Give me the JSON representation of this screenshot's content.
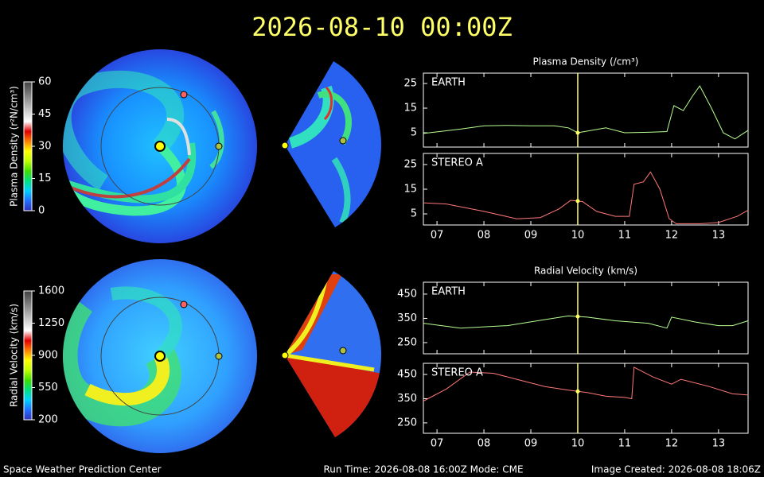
{
  "header": {
    "title": "2026-08-10  00:00Z"
  },
  "footer": {
    "left": "Space Weather Prediction Center",
    "center": "Run Time: 2026-08-08 16:00Z  Mode: CME",
    "right": "Image Created: 2026-08-08 18:06Z"
  },
  "colorbars": [
    {
      "label": "Plasma Density (r²N/cm³)",
      "lim": [
        0,
        60
      ],
      "ticks": [
        0,
        15,
        30,
        45,
        60
      ],
      "colors": [
        "#3030c0",
        "#2070ff",
        "#00d0ff",
        "#00e080",
        "#40e000",
        "#c0ff00",
        "#ffff00",
        "#ff8000",
        "#e00000",
        "#ffffff",
        "#d0d0d0",
        "#a0a0a0",
        "#707070",
        "#404040"
      ]
    },
    {
      "label": "Radial Velocity (km/s)",
      "lim": [
        200,
        1600
      ],
      "ticks": [
        200,
        550,
        900,
        1250,
        1600
      ],
      "colors": [
        "#3030c0",
        "#2070ff",
        "#00d0ff",
        "#00e080",
        "#40e000",
        "#c0ff00",
        "#ffff00",
        "#ff8000",
        "#e00000",
        "#ffffff",
        "#d0d0d0",
        "#a0a0a0",
        "#707070",
        "#404040"
      ]
    }
  ],
  "chart_data": [
    {
      "type": "line",
      "title": "Plasma Density (/cm³)",
      "xlim": [
        6.71,
        13.63
      ],
      "ylim": [
        -0.8,
        29.2
      ],
      "yticks": [
        5,
        15,
        25
      ],
      "xticks": [
        7,
        8,
        9,
        10,
        11,
        12,
        13
      ],
      "marker_x": 10.0,
      "x": [
        6.71,
        7.5,
        8.0,
        8.5,
        9.0,
        9.5,
        9.8,
        10.0,
        10.3,
        10.6,
        11.0,
        11.5,
        11.9,
        12.05,
        12.25,
        12.45,
        12.6,
        12.85,
        13.1,
        13.35,
        13.63
      ],
      "series": [
        {
          "name": "EARTH",
          "color": "#b8ff90",
          "values": [
            4.7,
            6.5,
            7.8,
            8.0,
            7.8,
            7.8,
            7.0,
            5.0,
            6.0,
            7.0,
            5.0,
            5.2,
            5.5,
            16,
            14,
            20,
            24,
            15,
            5,
            2.5,
            6
          ]
        }
      ]
    },
    {
      "type": "line",
      "xlim": [
        6.71,
        13.63
      ],
      "ylim": [
        0.5,
        29.5
      ],
      "yticks": [
        5,
        15,
        25
      ],
      "marker_x": 10.0,
      "xticks": [
        {
          "value": 7,
          "label": "07"
        },
        {
          "value": 8,
          "label": "08"
        },
        {
          "value": 9,
          "label": "09"
        },
        {
          "value": 10,
          "label": "10"
        },
        {
          "value": 11,
          "label": "11"
        },
        {
          "value": 12,
          "label": "12"
        },
        {
          "value": 13,
          "label": "13"
        }
      ],
      "x": [
        6.71,
        7.2,
        8.0,
        8.7,
        9.2,
        9.6,
        9.85,
        10.1,
        10.4,
        10.8,
        11.1,
        11.2,
        11.4,
        11.55,
        11.75,
        11.95,
        12.1,
        12.6,
        13.0,
        13.4,
        13.63
      ],
      "series": [
        {
          "name": "STEREO A",
          "color": "#ff7878",
          "values": [
            9.5,
            9,
            6,
            3,
            3.5,
            7,
            10.5,
            10,
            6,
            4,
            4,
            17,
            18,
            22,
            15,
            3,
            1,
            1,
            1.5,
            4,
            6.5
          ]
        }
      ]
    },
    {
      "type": "line",
      "title": "Radial Velocity (km/s)",
      "xlim": [
        6.71,
        13.63
      ],
      "ylim": [
        204,
        499
      ],
      "yticks": [
        250,
        350,
        450
      ],
      "xticks": [
        7,
        8,
        9,
        10,
        11,
        12,
        13
      ],
      "marker_x": 10.0,
      "x": [
        6.71,
        7.5,
        8.5,
        9.3,
        9.8,
        10.2,
        10.8,
        11.5,
        11.9,
        12.0,
        12.5,
        13.0,
        13.3,
        13.63
      ],
      "series": [
        {
          "name": "EARTH",
          "color": "#b8ff90",
          "values": [
            330,
            310,
            320,
            345,
            360,
            355,
            340,
            330,
            310,
            355,
            335,
            320,
            320,
            340
          ]
        }
      ]
    },
    {
      "type": "line",
      "xlim": [
        6.71,
        13.63
      ],
      "ylim": [
        207,
        496
      ],
      "yticks": [
        250,
        350,
        450
      ],
      "marker_x": 10.0,
      "xticks": [
        {
          "value": 7,
          "label": "07"
        },
        {
          "value": 8,
          "label": "08"
        },
        {
          "value": 9,
          "label": "09"
        },
        {
          "value": 10,
          "label": "10"
        },
        {
          "value": 11,
          "label": "11"
        },
        {
          "value": 12,
          "label": "12"
        },
        {
          "value": 13,
          "label": "13"
        }
      ],
      "x": [
        6.71,
        7.2,
        7.7,
        8.2,
        8.7,
        9.3,
        9.8,
        10.2,
        10.6,
        11.0,
        11.15,
        11.2,
        11.6,
        12.0,
        12.2,
        12.8,
        13.3,
        13.63
      ],
      "series": [
        {
          "name": "STEREO A",
          "color": "#ff7878",
          "values": [
            340,
            390,
            460,
            455,
            430,
            400,
            385,
            375,
            360,
            355,
            350,
            480,
            440,
            410,
            430,
            400,
            370,
            365
          ]
        }
      ]
    }
  ]
}
